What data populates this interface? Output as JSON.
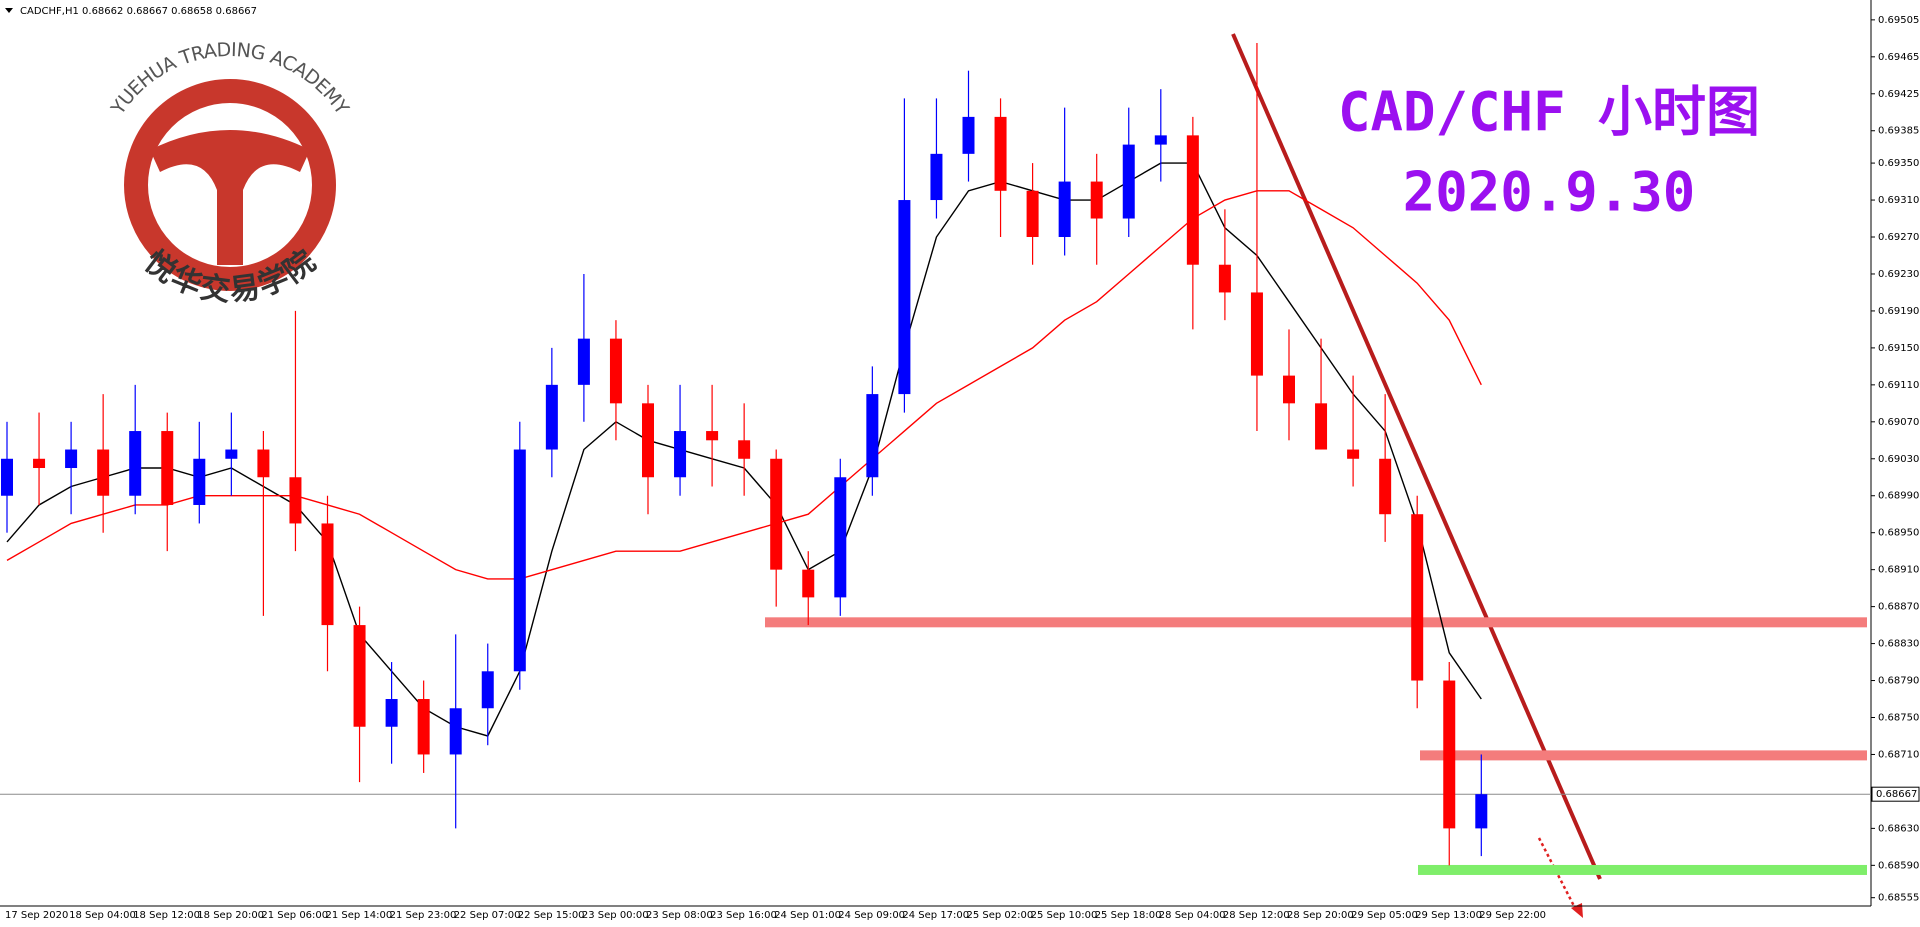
{
  "chart_data": {
    "type": "candlestick",
    "symbol_label": "CADCHF,H1",
    "ohlc_readout": [
      0.68662,
      0.68667,
      0.68658,
      0.68667
    ],
    "title": "CAD/CHF 小时图",
    "subtitle": "2020.9.30",
    "watermark": {
      "top": "YUEHUA TRADING ACADEMY",
      "bottom": "悦华交易学院"
    },
    "categories": [
      "17 Sep 2020",
      null,
      "18 Sep 04:00",
      null,
      "18 Sep 12:00",
      null,
      "18 Sep 20:00",
      null,
      "21 Sep 06:00",
      null,
      "21 Sep 14:00",
      null,
      "21 Sep 23:00",
      null,
      "22 Sep 07:00",
      null,
      "22 Sep 15:00",
      null,
      "23 Sep 00:00",
      null,
      "23 Sep 08:00",
      null,
      "23 Sep 16:00",
      null,
      "24 Sep 01:00",
      null,
      "24 Sep 09:00",
      null,
      "24 Sep 17:00",
      null,
      "25 Sep 02:00",
      null,
      "25 Sep 10:00",
      null,
      "25 Sep 18:00",
      null,
      "28 Sep 04:00",
      null,
      "28 Sep 12:00",
      null,
      "28 Sep 20:00",
      null,
      "29 Sep 05:00",
      null,
      "29 Sep 13:00",
      null,
      "29 Sep 22:00"
    ],
    "open": [
      0.6899,
      0.6903,
      0.6902,
      0.6904,
      0.6899,
      0.6906,
      0.6898,
      0.6903,
      0.6904,
      0.6901,
      0.6896,
      0.6885,
      0.6874,
      0.6877,
      0.6871,
      0.6876,
      0.688,
      0.6904,
      0.6911,
      0.6916,
      0.6909,
      0.6901,
      0.6906,
      0.6905,
      0.6903,
      0.6891,
      0.6888,
      0.6901,
      0.691,
      0.6931,
      0.6936,
      0.694,
      0.6932,
      0.6927,
      0.6933,
      0.6929,
      0.6937,
      0.6938,
      0.6924,
      0.6921,
      0.6912,
      0.6909,
      0.6904,
      0.6903,
      0.6897,
      0.6879,
      0.6863
    ],
    "high": [
      0.6907,
      0.6908,
      0.6907,
      0.691,
      0.6911,
      0.6908,
      0.6907,
      0.6908,
      0.6906,
      0.6919,
      0.6899,
      0.6887,
      0.6881,
      0.6879,
      0.6884,
      0.6883,
      0.6907,
      0.6915,
      0.6923,
      0.6918,
      0.6911,
      0.6911,
      0.6911,
      0.6909,
      0.6904,
      0.6893,
      0.6903,
      0.6913,
      0.6942,
      0.6942,
      0.6945,
      0.6942,
      0.6935,
      0.6941,
      0.6936,
      0.6941,
      0.6943,
      0.694,
      0.693,
      0.6948,
      0.6917,
      0.6916,
      0.6912,
      0.691,
      0.6899,
      0.6881,
      0.6871
    ],
    "low": [
      0.6895,
      0.6898,
      0.6897,
      0.6895,
      0.6897,
      0.6893,
      0.6896,
      0.6899,
      0.6886,
      0.6893,
      0.688,
      0.6868,
      0.687,
      0.6869,
      0.6863,
      0.6872,
      0.6878,
      0.6901,
      0.6907,
      0.6905,
      0.6897,
      0.6899,
      0.69,
      0.6899,
      0.6887,
      0.6885,
      0.6886,
      0.6899,
      0.6908,
      0.6929,
      0.6933,
      0.6927,
      0.6924,
      0.6925,
      0.6924,
      0.6927,
      0.6933,
      0.6917,
      0.6918,
      0.6906,
      0.6905,
      0.6904,
      0.69,
      0.6894,
      0.6876,
      0.6859,
      0.686
    ],
    "close": [
      0.6903,
      0.6902,
      0.6904,
      0.6899,
      0.6906,
      0.6898,
      0.6903,
      0.6904,
      0.6901,
      0.6896,
      0.6885,
      0.6874,
      0.6877,
      0.6871,
      0.6876,
      0.688,
      0.6904,
      0.6911,
      0.6916,
      0.6909,
      0.6901,
      0.6906,
      0.6905,
      0.6903,
      0.6891,
      0.6888,
      0.6901,
      0.691,
      0.6931,
      0.6936,
      0.694,
      0.6932,
      0.6927,
      0.6933,
      0.6929,
      0.6937,
      0.6938,
      0.6924,
      0.6921,
      0.6912,
      0.6909,
      0.6904,
      0.6903,
      0.6897,
      0.6879,
      0.6863,
      0.68667
    ],
    "up_color": "#0000ff",
    "down_color": "#ff0000",
    "moving_averages": [
      {
        "color": "#000000",
        "values": [
          0.6894,
          0.6898,
          0.69,
          0.6901,
          0.6902,
          0.6902,
          0.6901,
          0.6902,
          0.69,
          0.6898,
          0.6894,
          0.6884,
          0.688,
          0.6876,
          0.6874,
          0.6873,
          0.688,
          0.6893,
          0.6904,
          0.6907,
          0.6905,
          0.6904,
          0.6903,
          0.6902,
          0.6898,
          0.6891,
          0.6893,
          0.6902,
          0.6915,
          0.6927,
          0.6932,
          0.6933,
          0.6932,
          0.6931,
          0.6931,
          0.6933,
          0.6935,
          0.6935,
          0.6928,
          0.6925,
          0.692,
          0.6915,
          0.691,
          0.6906,
          0.6896,
          0.6882,
          0.6877
        ]
      },
      {
        "color": "#ff0000",
        "values": [
          0.6892,
          0.6894,
          0.6896,
          0.6897,
          0.6898,
          0.6898,
          0.6899,
          0.6899,
          0.6899,
          0.6899,
          0.6898,
          0.6897,
          0.6895,
          0.6893,
          0.6891,
          0.689,
          0.689,
          0.6891,
          0.6892,
          0.6893,
          0.6893,
          0.6893,
          0.6894,
          0.6895,
          0.6896,
          0.6897,
          0.69,
          0.6903,
          0.6906,
          0.6909,
          0.6911,
          0.6913,
          0.6915,
          0.6918,
          0.692,
          0.6923,
          0.6926,
          0.6929,
          0.6931,
          0.6932,
          0.6932,
          0.693,
          0.6928,
          0.6925,
          0.6922,
          0.6918,
          0.6911
        ]
      }
    ],
    "levels": [
      {
        "value": 0.68853,
        "color": "#f47c7c"
      },
      {
        "value": 0.68709,
        "color": "#f47c7c"
      },
      {
        "value": 0.68585,
        "color": "#7fee6a"
      }
    ],
    "current_price": 0.68667,
    "ylim": [
      0.68546,
      0.6952
    ],
    "yticks": [
      0.69505,
      0.69465,
      0.69425,
      0.69385,
      {
        "value": 0.6935,
        "label": "0.69350"
      },
      {
        "value": 0.6931,
        "label": "0.69310"
      },
      {
        "value": 0.6927,
        "label": "0.69270"
      },
      {
        "value": 0.6923,
        "label": "0.69230"
      },
      {
        "value": 0.6919,
        "label": "0.69190"
      },
      {
        "value": 0.6915,
        "label": "0.69150"
      },
      {
        "value": 0.6911,
        "label": "0.69110"
      },
      {
        "value": 0.6907,
        "label": "0.69070"
      },
      {
        "value": 0.6903,
        "label": "0.69030"
      },
      {
        "value": 0.6899,
        "label": "0.68990"
      },
      {
        "value": 0.6895,
        "label": "0.68950"
      },
      {
        "value": 0.6891,
        "label": "0.68910"
      },
      {
        "value": 0.6887,
        "label": "0.68870"
      },
      {
        "value": 0.6883,
        "label": "0.68830"
      },
      {
        "value": 0.6879,
        "label": "0.68790"
      },
      {
        "value": 0.6875,
        "label": "0.68750"
      },
      {
        "value": 0.6871,
        "label": "0.68710"
      },
      {
        "value": 0.6863,
        "label": "0.68630"
      },
      {
        "value": 0.6859,
        "label": "0.68590"
      },
      0.68555
    ]
  }
}
